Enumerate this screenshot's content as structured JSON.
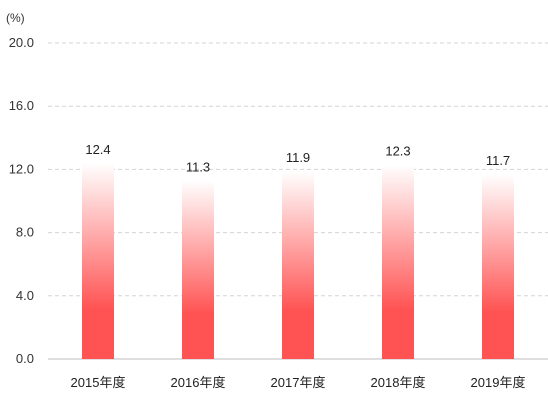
{
  "chart_data": {
    "type": "bar",
    "unit_label": "(%)",
    "categories": [
      "2015年度",
      "2016年度",
      "2017年度",
      "2018年度",
      "2019年度"
    ],
    "values": [
      12.4,
      11.3,
      11.9,
      12.3,
      11.7
    ],
    "data_labels": [
      "12.4",
      "11.3",
      "11.9",
      "12.3",
      "11.7"
    ],
    "y_ticks": [
      "0.0",
      "4.0",
      "8.0",
      "12.0",
      "16.0",
      "20.0"
    ],
    "y_tick_values": [
      0,
      4,
      8,
      12,
      16,
      20
    ],
    "ylim": [
      0,
      20
    ],
    "grid": true,
    "legend": "none",
    "bar_color_top": "#ffffff",
    "bar_color_bottom": "#ff5252"
  }
}
